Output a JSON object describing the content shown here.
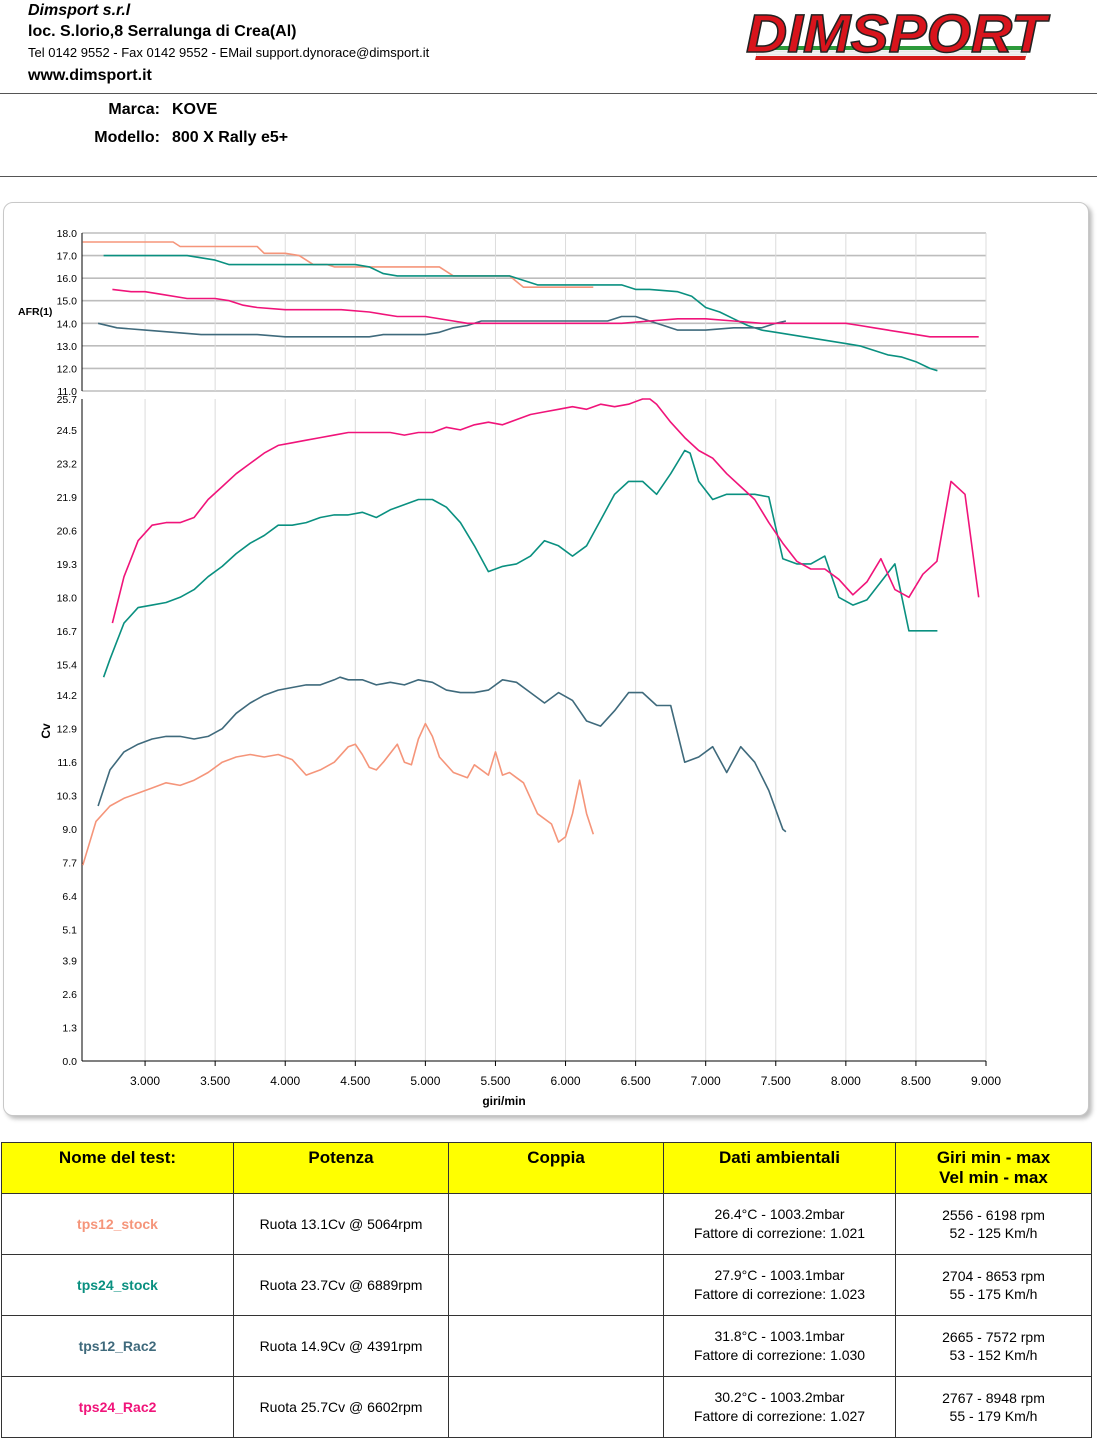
{
  "header": {
    "company": "Dimsport s.r.l",
    "address": "loc. S.lorio,8 Serralunga di Crea(Al)",
    "contacts": "Tel 0142 9552 - Fax 0142 9552 - EMail support.dynorace@dimsport.it",
    "website": "www.dimsport.it",
    "logo_text": "DIMSPORT"
  },
  "vehicle": {
    "marca_label": "Marca:",
    "marca": "KOVE",
    "modello_label": "Modello:",
    "modello": "800 X Rally e5+"
  },
  "colors": {
    "tps12_stock": "#f5957a",
    "tps24_stock": "#0a9080",
    "tps12_Rac2": "#3f6a7c",
    "tps24_Rac2": "#f0147a",
    "table_header": "#ffff00"
  },
  "chart_data": [
    {
      "type": "line",
      "ylabel": "AFR(1)",
      "ylim": [
        11.0,
        18.0
      ],
      "yticks": [
        "11.0",
        "12.0",
        "13.0",
        "14.0",
        "15.0",
        "16.0",
        "17.0",
        "18.0"
      ],
      "grid": true,
      "series": [
        {
          "name": "tps12_stock",
          "x": [
            2556,
            2800,
            3000,
            3200,
            3250,
            3400,
            3600,
            3800,
            3850,
            4000,
            4100,
            4200,
            4300,
            4350,
            4500,
            4700,
            5000,
            5100,
            5200,
            5300,
            5450,
            5600,
            5700,
            5750,
            6000,
            6198
          ],
          "y": [
            17.6,
            17.6,
            17.6,
            17.6,
            17.4,
            17.4,
            17.4,
            17.4,
            17.1,
            17.1,
            17.0,
            16.6,
            16.6,
            16.5,
            16.5,
            16.5,
            16.5,
            16.5,
            16.1,
            16.1,
            16.1,
            16.1,
            15.6,
            15.6,
            15.6,
            15.6
          ]
        },
        {
          "name": "tps24_stock",
          "x": [
            2704,
            3000,
            3300,
            3400,
            3500,
            3600,
            3800,
            4000,
            4200,
            4500,
            4600,
            4700,
            4800,
            5000,
            5200,
            5500,
            5600,
            5700,
            5800,
            6000,
            6400,
            6500,
            6600,
            6800,
            6900,
            7000,
            7100,
            7200,
            7300,
            7400,
            7500,
            7600,
            7800,
            8000,
            8100,
            8200,
            8300,
            8400,
            8500,
            8600,
            8653
          ],
          "y": [
            17.0,
            17.0,
            17.0,
            16.9,
            16.8,
            16.6,
            16.6,
            16.6,
            16.6,
            16.6,
            16.5,
            16.2,
            16.1,
            16.1,
            16.1,
            16.1,
            16.1,
            15.9,
            15.7,
            15.7,
            15.7,
            15.5,
            15.5,
            15.4,
            15.2,
            14.7,
            14.5,
            14.2,
            13.9,
            13.7,
            13.6,
            13.5,
            13.3,
            13.1,
            13.0,
            12.8,
            12.6,
            12.5,
            12.3,
            12.0,
            11.9
          ]
        },
        {
          "name": "tps12_Rac2",
          "x": [
            2665,
            2800,
            3000,
            3200,
            3400,
            3600,
            3800,
            4000,
            4400,
            4600,
            4700,
            5000,
            5100,
            5200,
            5300,
            5400,
            5600,
            5800,
            6000,
            6300,
            6400,
            6500,
            6600,
            6700,
            6800,
            7000,
            7200,
            7300,
            7400,
            7500,
            7572
          ],
          "y": [
            14.0,
            13.8,
            13.7,
            13.6,
            13.5,
            13.5,
            13.5,
            13.4,
            13.4,
            13.4,
            13.5,
            13.5,
            13.6,
            13.8,
            13.9,
            14.1,
            14.1,
            14.1,
            14.1,
            14.1,
            14.3,
            14.3,
            14.1,
            13.9,
            13.7,
            13.7,
            13.8,
            13.8,
            13.8,
            14.0,
            14.1
          ]
        },
        {
          "name": "tps24_Rac2",
          "x": [
            2767,
            2900,
            3000,
            3100,
            3300,
            3500,
            3600,
            3700,
            3800,
            4000,
            4200,
            4400,
            4600,
            4800,
            5000,
            5200,
            5300,
            5400,
            5600,
            5800,
            6000,
            6200,
            6400,
            6600,
            6800,
            7000,
            7200,
            7400,
            7600,
            7800,
            8000,
            8100,
            8200,
            8300,
            8400,
            8500,
            8600,
            8700,
            8800,
            8948
          ],
          "y": [
            15.5,
            15.4,
            15.4,
            15.3,
            15.1,
            15.1,
            15.0,
            14.8,
            14.7,
            14.6,
            14.6,
            14.6,
            14.5,
            14.3,
            14.3,
            14.1,
            14.0,
            14.0,
            14.0,
            14.0,
            14.0,
            14.0,
            14.0,
            14.1,
            14.2,
            14.2,
            14.1,
            14.0,
            14.0,
            14.0,
            14.0,
            13.9,
            13.8,
            13.7,
            13.6,
            13.5,
            13.4,
            13.4,
            13.4,
            13.4
          ]
        }
      ]
    },
    {
      "type": "line",
      "xlabel": "giri/min",
      "ylabel": "Cv",
      "xlim": [
        2550,
        9000
      ],
      "ylim": [
        0.0,
        25.7
      ],
      "xticks": [
        "3.000",
        "3.500",
        "4.000",
        "4.500",
        "5.000",
        "5.500",
        "6.000",
        "6.500",
        "7.000",
        "7.500",
        "8.000",
        "8.500",
        "9.000"
      ],
      "yticks": [
        "0.0",
        "1.3",
        "2.6",
        "3.9",
        "5.1",
        "6.4",
        "7.7",
        "9.0",
        "10.3",
        "11.6",
        "12.9",
        "14.2",
        "15.4",
        "16.7",
        "18.0",
        "19.3",
        "20.6",
        "21.9",
        "23.2",
        "24.5",
        "25.7"
      ],
      "grid": true,
      "series": [
        {
          "name": "tps12_stock",
          "x": [
            2556,
            2650,
            2750,
            2850,
            2950,
            3050,
            3150,
            3250,
            3350,
            3450,
            3550,
            3650,
            3750,
            3850,
            3950,
            4050,
            4150,
            4250,
            4350,
            4450,
            4500,
            4550,
            4600,
            4650,
            4700,
            4800,
            4850,
            4900,
            4950,
            5000,
            5050,
            5100,
            5200,
            5300,
            5350,
            5450,
            5500,
            5550,
            5600,
            5650,
            5700,
            5800,
            5900,
            5950,
            6000,
            6050,
            6100,
            6150,
            6198
          ],
          "y": [
            7.6,
            9.3,
            9.9,
            10.2,
            10.4,
            10.6,
            10.8,
            10.7,
            10.9,
            11.2,
            11.6,
            11.8,
            11.9,
            11.8,
            11.9,
            11.7,
            11.1,
            11.3,
            11.6,
            12.2,
            12.3,
            11.9,
            11.4,
            11.3,
            11.6,
            12.3,
            11.6,
            11.5,
            12.5,
            13.1,
            12.6,
            11.8,
            11.2,
            11.0,
            11.5,
            11.1,
            12.0,
            11.1,
            11.2,
            11.0,
            10.8,
            9.6,
            9.2,
            8.5,
            8.7,
            9.6,
            10.9,
            9.6,
            8.8
          ]
        },
        {
          "name": "tps24_stock",
          "x": [
            2704,
            2750,
            2800,
            2850,
            2950,
            3050,
            3150,
            3250,
            3350,
            3450,
            3550,
            3650,
            3750,
            3850,
            3950,
            4050,
            4150,
            4250,
            4350,
            4450,
            4550,
            4650,
            4750,
            4850,
            4950,
            5050,
            5150,
            5250,
            5350,
            5450,
            5550,
            5650,
            5750,
            5850,
            5950,
            6050,
            6150,
            6250,
            6350,
            6450,
            6550,
            6650,
            6750,
            6850,
            6889,
            6950,
            7050,
            7150,
            7250,
            7350,
            7450,
            7550,
            7650,
            7750,
            7850,
            7950,
            8050,
            8150,
            8250,
            8350,
            8450,
            8550,
            8653
          ],
          "y": [
            14.9,
            15.6,
            16.3,
            17.0,
            17.6,
            17.7,
            17.8,
            18.0,
            18.3,
            18.8,
            19.2,
            19.7,
            20.1,
            20.4,
            20.8,
            20.8,
            20.9,
            21.1,
            21.2,
            21.2,
            21.3,
            21.1,
            21.4,
            21.6,
            21.8,
            21.8,
            21.5,
            20.9,
            20.0,
            19.0,
            19.2,
            19.3,
            19.6,
            20.2,
            20.0,
            19.6,
            20.0,
            21.0,
            22.0,
            22.5,
            22.5,
            22.0,
            22.8,
            23.7,
            23.6,
            22.5,
            21.8,
            22.0,
            22.0,
            22.0,
            21.9,
            19.5,
            19.3,
            19.3,
            19.6,
            18.0,
            17.7,
            17.9,
            18.6,
            19.3,
            16.7,
            16.7,
            16.7
          ]
        },
        {
          "name": "tps12_Rac2",
          "x": [
            2665,
            2750,
            2850,
            2950,
            3050,
            3150,
            3250,
            3350,
            3450,
            3550,
            3650,
            3750,
            3850,
            3950,
            4050,
            4150,
            4250,
            4350,
            4391,
            4450,
            4550,
            4650,
            4750,
            4850,
            4950,
            5050,
            5150,
            5250,
            5350,
            5450,
            5550,
            5650,
            5750,
            5850,
            5950,
            6050,
            6150,
            6250,
            6350,
            6450,
            6550,
            6650,
            6750,
            6850,
            6950,
            7050,
            7150,
            7250,
            7350,
            7450,
            7550,
            7572
          ],
          "y": [
            9.9,
            11.3,
            12.0,
            12.3,
            12.5,
            12.6,
            12.6,
            12.5,
            12.6,
            12.9,
            13.5,
            13.9,
            14.2,
            14.4,
            14.5,
            14.6,
            14.6,
            14.8,
            14.9,
            14.8,
            14.8,
            14.6,
            14.7,
            14.6,
            14.8,
            14.7,
            14.4,
            14.3,
            14.3,
            14.4,
            14.8,
            14.7,
            14.3,
            13.9,
            14.3,
            14.0,
            13.2,
            13.0,
            13.6,
            14.3,
            14.3,
            13.8,
            13.8,
            11.6,
            11.8,
            12.2,
            11.2,
            12.2,
            11.6,
            10.5,
            9.0,
            8.9
          ]
        },
        {
          "name": "tps24_Rac2",
          "x": [
            2767,
            2850,
            2950,
            3050,
            3150,
            3250,
            3350,
            3450,
            3550,
            3650,
            3750,
            3850,
            3950,
            4050,
            4150,
            4250,
            4350,
            4450,
            4550,
            4650,
            4750,
            4850,
            4950,
            5050,
            5150,
            5250,
            5350,
            5450,
            5550,
            5650,
            5750,
            5850,
            5950,
            6050,
            6150,
            6250,
            6350,
            6450,
            6550,
            6602,
            6650,
            6750,
            6850,
            6950,
            7050,
            7150,
            7250,
            7350,
            7450,
            7550,
            7650,
            7750,
            7850,
            7950,
            8050,
            8150,
            8250,
            8350,
            8450,
            8550,
            8650,
            8750,
            8850,
            8948
          ],
          "y": [
            17.0,
            18.8,
            20.2,
            20.8,
            20.9,
            20.9,
            21.1,
            21.8,
            22.3,
            22.8,
            23.2,
            23.6,
            23.9,
            24.0,
            24.1,
            24.2,
            24.3,
            24.4,
            24.4,
            24.4,
            24.4,
            24.3,
            24.4,
            24.4,
            24.6,
            24.5,
            24.7,
            24.8,
            24.7,
            24.9,
            25.1,
            25.2,
            25.3,
            25.4,
            25.3,
            25.5,
            25.4,
            25.5,
            25.7,
            25.7,
            25.5,
            24.8,
            24.2,
            23.7,
            23.4,
            22.8,
            22.3,
            21.8,
            20.9,
            20.1,
            19.4,
            19.1,
            19.1,
            18.7,
            18.1,
            18.6,
            19.5,
            18.3,
            18.0,
            18.9,
            19.4,
            22.5,
            22.0,
            18.0
          ]
        }
      ]
    }
  ],
  "table": {
    "headers": {
      "name": "Nome del test:",
      "potenza": "Potenza",
      "coppia": "Coppia",
      "dati": "Dati ambientali",
      "giri_1": "Giri min - max",
      "giri_2": "Vel  min - max"
    },
    "rows": [
      {
        "name": "tps12_stock",
        "potenza": "Ruota 13.1Cv @ 5064rpm",
        "coppia": "",
        "amb1": "26.4°C - 1003.2mbar",
        "amb2": "Fattore di correzione: 1.021",
        "giri": "2556 - 6198 rpm",
        "vel": "52 - 125 Km/h"
      },
      {
        "name": "tps24_stock",
        "potenza": "Ruota 23.7Cv @ 6889rpm",
        "coppia": "",
        "amb1": "27.9°C - 1003.1mbar",
        "amb2": "Fattore di correzione: 1.023",
        "giri": "2704 - 8653 rpm",
        "vel": "55 - 175 Km/h"
      },
      {
        "name": "tps12_Rac2",
        "potenza": "Ruota 14.9Cv @ 4391rpm",
        "coppia": "",
        "amb1": "31.8°C - 1003.1mbar",
        "amb2": "Fattore di correzione: 1.030",
        "giri": "2665 - 7572 rpm",
        "vel": "53 - 152 Km/h"
      },
      {
        "name": "tps24_Rac2",
        "potenza": "Ruota 25.7Cv @ 6602rpm",
        "coppia": "",
        "amb1": "30.2°C - 1003.2mbar",
        "amb2": "Fattore di correzione: 1.027",
        "giri": "2767 - 8948 rpm",
        "vel": "55 - 179 Km/h"
      }
    ]
  }
}
